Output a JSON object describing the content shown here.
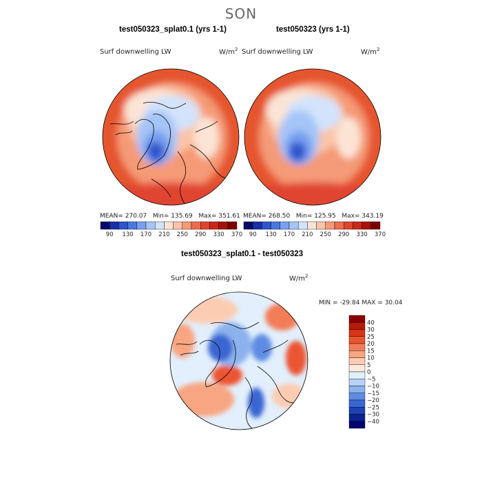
{
  "season_title": "SON",
  "panels": [
    {
      "title": "test050323_splat0.1 (yrs 1-1)",
      "variable": "Surf downwelling LW",
      "units_base": "W/m",
      "units_exp": "2",
      "stats": {
        "mean_label": "MEAN=",
        "mean": "270.07",
        "min_label": "Min=",
        "min": "135.69",
        "max_label": "Max=",
        "max": "351.61"
      }
    },
    {
      "title": "test050323 (yrs 1-1)",
      "variable": "Surf downwelling LW",
      "units_base": "W/m",
      "units_exp": "2",
      "stats": {
        "mean_label": "MEAN=",
        "mean": "268.50",
        "min_label": "Min=",
        "min": "125.95",
        "max_label": "Max=",
        "max": "343.19"
      }
    },
    {
      "title": "test050323_splat0.1 - test050323",
      "variable": "Surf downwelling LW",
      "units_base": "W/m",
      "units_exp": "2",
      "stats": {
        "min_label": "MIN =",
        "min": "-29.84",
        "max_label": "MAX =",
        "max": "30.04"
      }
    }
  ],
  "chart_data": [
    {
      "type": "heatmap",
      "title": "test050323_splat0.1 (yrs 1-1)",
      "projection": "north polar stereographic",
      "colorbar": {
        "orientation": "horizontal",
        "levels": [
          90,
          130,
          170,
          210,
          250,
          290,
          330,
          370
        ],
        "colors": [
          "#08086b",
          "#1630a8",
          "#2e55cc",
          "#4a78e0",
          "#789ff0",
          "#a5c4f7",
          "#d2e3fb",
          "#fbe4d6",
          "#fbc4a8",
          "#f59a76",
          "#ec6e4c",
          "#e04430",
          "#cc2818",
          "#a81206",
          "#7a0000"
        ]
      },
      "stats": {
        "mean": 270.07,
        "min": 135.69,
        "max": 351.61
      }
    },
    {
      "type": "heatmap",
      "title": "test050323 (yrs 1-1)",
      "projection": "north polar stereographic",
      "colorbar": {
        "orientation": "horizontal",
        "levels": [
          90,
          130,
          170,
          210,
          250,
          290,
          330,
          370
        ],
        "colors": [
          "#08086b",
          "#1630a8",
          "#2e55cc",
          "#4a78e0",
          "#789ff0",
          "#a5c4f7",
          "#d2e3fb",
          "#fbe4d6",
          "#fbc4a8",
          "#f59a76",
          "#ec6e4c",
          "#e04430",
          "#cc2818",
          "#a81206",
          "#7a0000"
        ]
      },
      "stats": {
        "mean": 268.5,
        "min": 125.95,
        "max": 343.19
      }
    },
    {
      "type": "heatmap",
      "title": "test050323_splat0.1 - test050323",
      "projection": "north polar stereographic",
      "colorbar": {
        "orientation": "vertical",
        "levels": [
          40,
          30,
          25,
          20,
          15,
          10,
          5,
          0,
          -5,
          -10,
          -15,
          -20,
          -25,
          -30,
          -40
        ],
        "label_text": [
          "40",
          "30",
          "25",
          "20",
          "15",
          "10",
          "5",
          "0",
          "−5",
          "−10",
          "−15",
          "−20",
          "−25",
          "−30",
          "−40"
        ],
        "colors": [
          "#8a0000",
          "#b81a08",
          "#d83418",
          "#ec5430",
          "#f37d56",
          "#f8a582",
          "#fcccb2",
          "#fdeadf",
          "#e2effc",
          "#b8d3f6",
          "#8cb2ee",
          "#5e8ce2",
          "#3a66d2",
          "#1f43b4",
          "#0c2390",
          "#05056e"
        ]
      },
      "stats": {
        "min": -29.84,
        "max": 30.04
      }
    }
  ]
}
